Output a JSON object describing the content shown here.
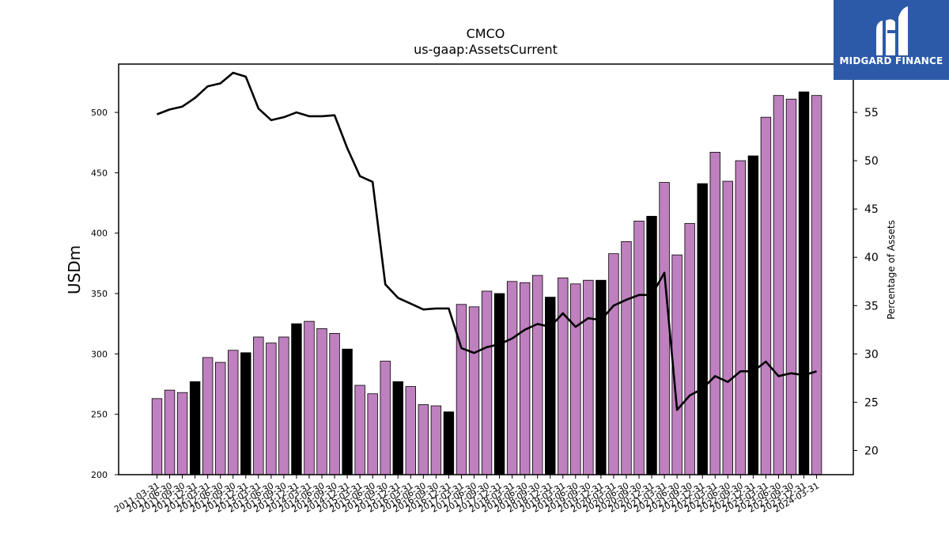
{
  "brand": {
    "name": "MIDGARD FINANCE",
    "bg_color": "#2d5aa8"
  },
  "chart_data": {
    "type": "bar",
    "title": "CMCO",
    "subtitle": "us-gaap:AssetsCurrent",
    "ylabel": "USDm",
    "ylabel_right": "Percentage of Assets",
    "ylim": [
      200,
      540
    ],
    "ylim_right": [
      17.5,
      60
    ],
    "yticks": [
      200,
      250,
      300,
      350,
      400,
      450,
      500
    ],
    "yticks_right": [
      20,
      25,
      30,
      35,
      40,
      45,
      50,
      55
    ],
    "grid": false,
    "colors": {
      "bar": "#bf80bf",
      "bar_highlight": "#000000",
      "line": "#000000"
    },
    "categories": [
      "2011-03-31",
      "2011-06-30",
      "2011-09-30",
      "2011-12-31",
      "2012-03-31",
      "2012-06-30",
      "2012-09-30",
      "2012-12-31",
      "2013-03-31",
      "2013-06-30",
      "2013-09-30",
      "2013-12-31",
      "2014-03-31",
      "2014-06-30",
      "2014-09-30",
      "2014-12-31",
      "2015-03-31",
      "2015-06-30",
      "2015-09-30",
      "2015-12-31",
      "2016-03-31",
      "2016-06-30",
      "2016-09-30",
      "2016-12-31",
      "2017-03-31",
      "2017-06-30",
      "2017-09-30",
      "2017-12-31",
      "2018-03-31",
      "2018-06-30",
      "2018-09-30",
      "2018-12-31",
      "2019-03-31",
      "2019-06-30",
      "2019-09-30",
      "2019-12-31",
      "2020-03-31",
      "2020-06-30",
      "2020-09-30",
      "2020-12-31",
      "2021-03-31",
      "2021-06-30",
      "2021-09-30",
      "2021-12-31",
      "2022-03-31",
      "2022-06-30",
      "2022-09-30",
      "2022-12-31",
      "2023-03-31",
      "2023-06-30",
      "2023-09-30",
      "2023-12-31",
      "2024-03-31"
    ],
    "series": [
      {
        "name": "",
        "type": "bar",
        "axis": "left",
        "values": [
          263,
          270,
          268,
          277,
          297,
          293,
          303,
          301,
          314,
          309,
          314,
          325,
          327,
          321,
          317,
          304,
          274,
          267,
          294,
          277,
          273,
          258,
          257,
          252,
          341,
          339,
          352,
          350,
          360,
          359,
          365,
          347,
          363,
          358,
          361,
          361,
          383,
          393,
          410,
          414,
          442,
          382,
          408,
          441,
          467,
          443,
          460,
          464,
          496,
          514,
          511,
          517,
          514
        ],
        "highlight": [
          false,
          false,
          false,
          true,
          false,
          false,
          false,
          true,
          false,
          false,
          false,
          true,
          false,
          false,
          false,
          true,
          false,
          false,
          false,
          true,
          false,
          false,
          false,
          true,
          false,
          false,
          false,
          true,
          false,
          false,
          false,
          true,
          false,
          false,
          false,
          true,
          false,
          false,
          false,
          true,
          false,
          false,
          false,
          true,
          false,
          false,
          false,
          true,
          false,
          false,
          false,
          true,
          false
        ]
      },
      {
        "name": "",
        "type": "line",
        "axis": "right",
        "values": [
          54.8,
          55.3,
          55.6,
          56.5,
          57.7,
          58.0,
          59.1,
          58.7,
          55.4,
          54.2,
          54.5,
          55.0,
          54.6,
          54.6,
          54.7,
          51.3,
          48.4,
          47.8,
          37.2,
          35.8,
          35.2,
          34.6,
          34.7,
          34.7,
          30.6,
          30.1,
          30.7,
          31.0,
          31.6,
          32.5,
          33.1,
          32.8,
          34.2,
          32.8,
          33.7,
          33.5,
          35.0,
          35.6,
          36.1,
          36.1,
          38.4,
          24.2,
          25.7,
          26.4,
          27.7,
          27.1,
          28.2,
          28.2,
          29.2,
          27.7,
          28.0,
          27.8,
          28.2
        ]
      }
    ]
  }
}
